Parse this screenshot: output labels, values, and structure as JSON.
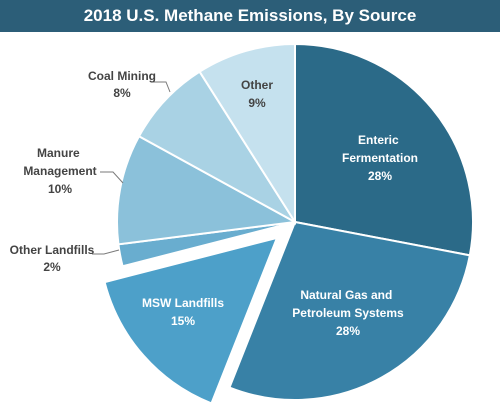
{
  "chart_data": {
    "type": "pie",
    "title": "2018 U.S. Methane Emissions, By Source",
    "slices": [
      {
        "label": "Enteric Fermentation",
        "value": 28,
        "value_label": "28%",
        "color": "#2b6a88"
      },
      {
        "label": "Natural Gas and Petroleum Systems",
        "value": 28,
        "value_label": "28%",
        "color": "#3881a6"
      },
      {
        "label": "MSW Landfills",
        "value": 15,
        "value_label": "15%",
        "color": "#4da0c9",
        "exploded": true
      },
      {
        "label": "Other Landfills",
        "value": 2,
        "value_label": "2%",
        "color": "#69adcf"
      },
      {
        "label": "Manure Management",
        "value": 10,
        "value_label": "10%",
        "color": "#8bc1da"
      },
      {
        "label": "Coal Mining",
        "value": 8,
        "value_label": "8%",
        "color": "#a9d2e4"
      },
      {
        "label": "Other",
        "value": 9,
        "value_label": "9%",
        "color": "#c5e1ee"
      }
    ]
  }
}
